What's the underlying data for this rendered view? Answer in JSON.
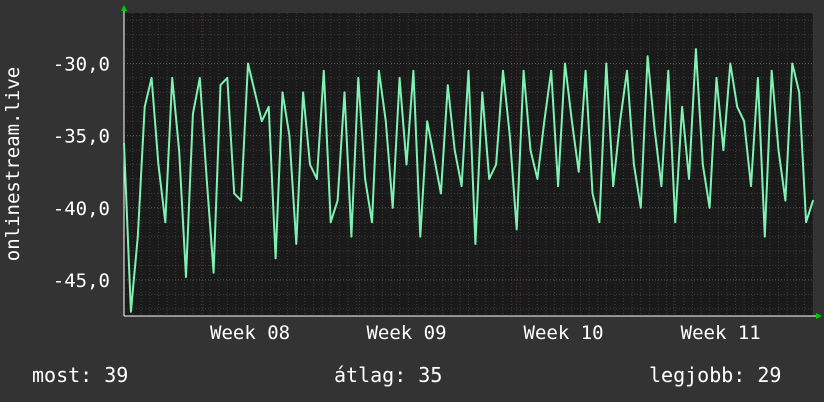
{
  "chart_data": {
    "type": "line",
    "ylabel": "onlinestream.live",
    "ylim": [
      -47.5,
      -26.5
    ],
    "yticks": [
      -30,
      -35,
      -40,
      -45
    ],
    "ytick_labels": [
      "-30,0",
      "-35,0",
      "-40,0",
      "-45,0"
    ],
    "xlim": [
      0,
      100
    ],
    "x_ticks": [
      {
        "label": "Week 08",
        "x": 18.3
      },
      {
        "label": "Week 09",
        "x": 41.0
      },
      {
        "label": "Week 10",
        "x": 63.8
      },
      {
        "label": "Week 11",
        "x": 86.6
      }
    ],
    "grid": true,
    "series": [
      {
        "color": "#7ff2b3",
        "x": [
          0,
          1,
          2,
          3,
          4,
          5,
          6,
          7,
          8,
          9,
          10,
          11,
          12,
          13,
          14,
          15,
          16,
          17,
          18,
          19,
          20,
          21,
          22,
          23,
          24,
          25,
          26,
          27,
          28,
          29,
          30,
          31,
          32,
          33,
          34,
          35,
          36,
          37,
          38,
          39,
          40,
          41,
          42,
          43,
          44,
          45,
          46,
          47,
          48,
          49,
          50,
          51,
          52,
          53,
          54,
          55,
          56,
          57,
          58,
          59,
          60,
          61,
          62,
          63,
          64,
          65,
          66,
          67,
          68,
          69,
          70,
          71,
          72,
          73,
          74,
          75,
          76,
          77,
          78,
          79,
          80,
          81,
          82,
          83,
          84,
          85,
          86,
          87,
          88,
          89,
          90,
          91,
          92,
          93,
          94,
          95,
          96,
          97,
          98,
          99,
          100
        ],
        "values": [
          -35.5,
          -47.2,
          -42.0,
          -33.0,
          -31.0,
          -37.0,
          -41.0,
          -31.0,
          -36.0,
          -44.8,
          -33.5,
          -31.0,
          -38.0,
          -44.5,
          -31.5,
          -31.0,
          -39.0,
          -39.5,
          -30.0,
          -32.0,
          -34.0,
          -33.0,
          -43.5,
          -32.0,
          -35.0,
          -42.5,
          -32.0,
          -37.0,
          -38.0,
          -30.5,
          -41.0,
          -39.5,
          -32.0,
          -42.0,
          -31.0,
          -38.0,
          -41.0,
          -30.5,
          -34.0,
          -40.0,
          -31.0,
          -37.0,
          -30.5,
          -42.0,
          -34.0,
          -36.5,
          -39.0,
          -31.5,
          -36.0,
          -38.5,
          -30.5,
          -42.5,
          -32.0,
          -38.0,
          -37.0,
          -30.5,
          -35.0,
          -41.5,
          -30.5,
          -36.0,
          -38.0,
          -34.0,
          -30.5,
          -38.5,
          -30.0,
          -34.0,
          -37.5,
          -30.5,
          -39.0,
          -41.0,
          -30.0,
          -38.5,
          -34.0,
          -30.5,
          -37.0,
          -40.0,
          -29.5,
          -34.5,
          -38.5,
          -30.5,
          -41.0,
          -33.0,
          -38.0,
          -29.0,
          -37.0,
          -40.0,
          -31.0,
          -36.0,
          -30.0,
          -33.0,
          -34.0,
          -38.5,
          -31.0,
          -42.0,
          -30.5,
          -36.0,
          -39.5,
          -30.0,
          -32.0,
          -41.0,
          -39.5
        ]
      }
    ]
  },
  "stats": {
    "current": "most: 39",
    "average": "átlag: 35",
    "best": "legjobb: 29"
  },
  "colors": {
    "background": "#333333",
    "plot_background": "#1a1a1a",
    "line": "#7ff2b3",
    "grid_major": "#5a5a5a",
    "grid_minor": "#3a3a3a",
    "week_grid": "#5a2e2e",
    "arrow": "#00cc00"
  }
}
